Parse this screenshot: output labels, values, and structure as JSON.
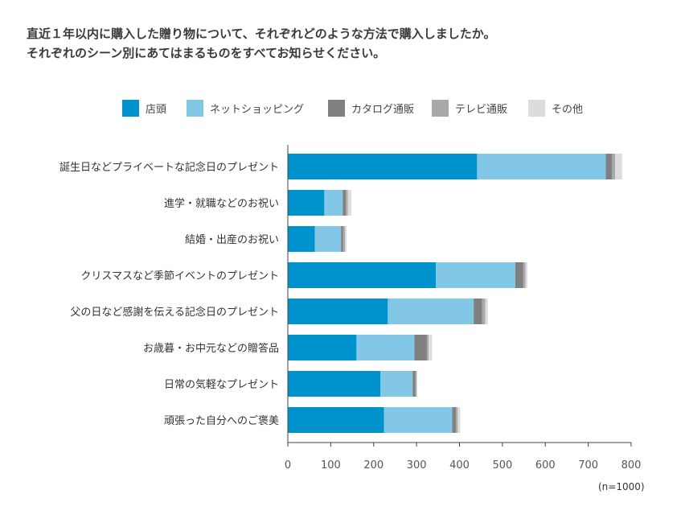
{
  "title": {
    "line1": "直近１年以内に購入した贈り物について、それぞれどのような方法で購入しましたか。",
    "line2": "それぞれのシーン別にあてはまるものをすべてお知らせください。"
  },
  "note": "(n=1000)",
  "colors": {
    "店頭": "#0092cc",
    "ネットショッピング": "#82c8e6",
    "カタログ通販": "#808080",
    "テレビ通販": "#a9a9a9",
    "その他": "#dcdcdc",
    "axis": "#444444"
  },
  "chart_data": {
    "type": "bar",
    "orientation": "horizontal",
    "stacked": true,
    "title": "直近１年以内に購入した贈り物について、それぞれどのような方法で購入しましたか。",
    "legend_position": "top",
    "grid": false,
    "xlim": [
      0,
      800
    ],
    "xticks": [
      "0",
      "100",
      "200",
      "300",
      "400",
      "500",
      "600",
      "700",
      "800"
    ],
    "categories": [
      "誕生日などプライベートな記念日のプレゼント",
      "進学・就職などのお祝い",
      "結婚・出産のお祝い",
      "クリスマスなど季節イベントのプレゼント",
      "父の日など感謝を伝える記念日のプレゼント",
      "お歳暮・お中元などの贈答品",
      "日常の気軽なプレゼント",
      "頑張った自分へのご褒美"
    ],
    "series": [
      {
        "name": "店頭",
        "values": [
          441,
          85,
          63,
          345,
          233,
          160,
          216,
          224
        ]
      },
      {
        "name": "ネットショッピング",
        "values": [
          300,
          43,
          61,
          185,
          200,
          135,
          75,
          159
        ]
      },
      {
        "name": "カタログ通販",
        "values": [
          14,
          7,
          5,
          18,
          20,
          29,
          6,
          9
        ]
      },
      {
        "name": "テレビ通販",
        "values": [
          8,
          5,
          4,
          6,
          7,
          4,
          3,
          4
        ]
      },
      {
        "name": "その他",
        "values": [
          16,
          8,
          4,
          4,
          6,
          8,
          2,
          6
        ]
      }
    ]
  }
}
